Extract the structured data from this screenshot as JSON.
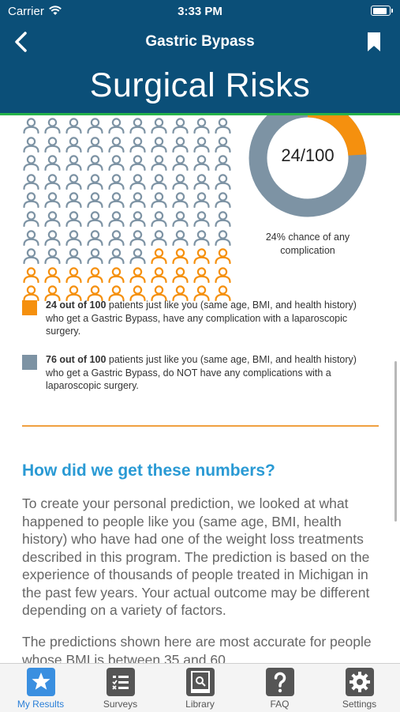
{
  "status_bar": {
    "carrier": "Carrier",
    "time": "3:33 PM"
  },
  "nav": {
    "title": "Gastric Bypass"
  },
  "page": {
    "title": "Surgical Risks"
  },
  "risk": {
    "with_complications": 24,
    "total": 100,
    "donut_label": "24/100",
    "chance_text": "24% chance of any complication",
    "colors": {
      "complication": "#f5900e",
      "no_complication": "#7d93a4"
    }
  },
  "legend": [
    {
      "bold": "24 out of 100",
      "text": " patients just like you (same age, BMI, and health history) who get a Gastric Bypass, have any complication with a laparoscopic surgery.",
      "color": "#f5900e"
    },
    {
      "bold": "76 out of 100",
      "text": " patients just like you (same age, BMI, and health history) who get a Gastric Bypass, do NOT have any complications with a laparoscopic surgery.",
      "color": "#7d93a4"
    }
  ],
  "section": {
    "heading": "How did we get these numbers?",
    "para1": "To create your personal prediction, we looked at what happened to people like you (same age, BMI, health history) who have had one of the weight loss treatments described in this program. The prediction is based on the experience of thousands of people treated in Michigan in the past few years. Your actual outcome may be different depending on a variety of factors.",
    "para2": "The predictions shown here are most accurate for people whose BMI is between 35 and 60."
  },
  "tabs": [
    {
      "label": "My Results",
      "icon": "star-icon",
      "active": true
    },
    {
      "label": "Surveys",
      "icon": "checklist-icon",
      "active": false
    },
    {
      "label": "Library",
      "icon": "book-icon",
      "active": false
    },
    {
      "label": "FAQ",
      "icon": "question-icon",
      "active": false
    },
    {
      "label": "Settings",
      "icon": "gear-icon",
      "active": false
    }
  ]
}
